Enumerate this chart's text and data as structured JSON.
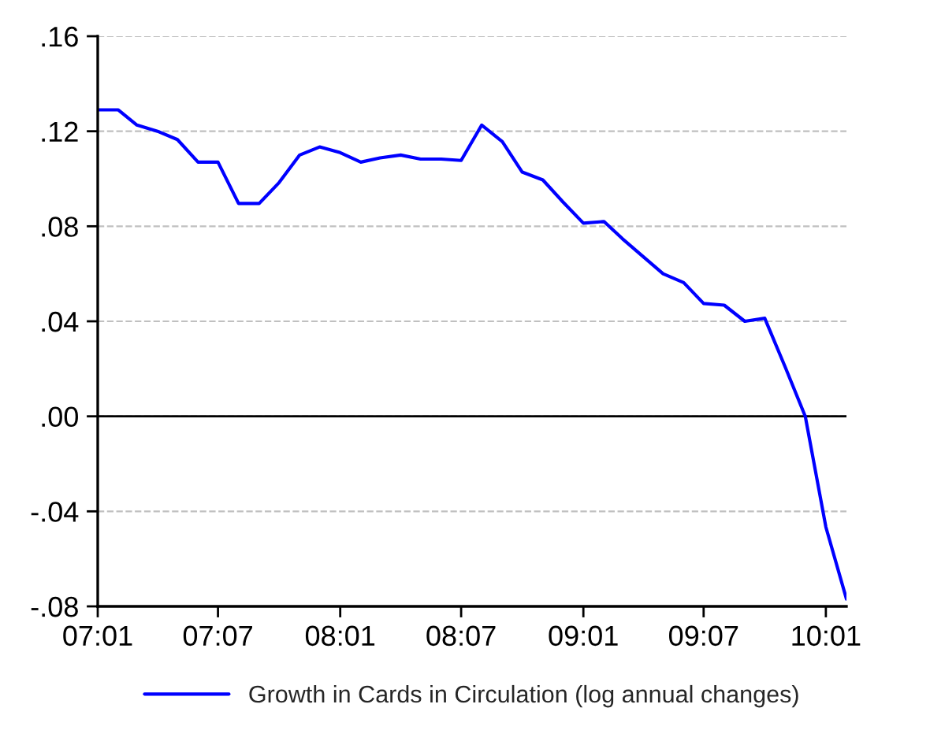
{
  "chart_data": {
    "type": "line",
    "x": [
      "2007-01",
      "2007-02",
      "2007-03",
      "2007-04",
      "2007-05",
      "2007-06",
      "2007-07",
      "2007-08",
      "2007-09",
      "2007-10",
      "2007-11",
      "2007-12",
      "2008-01",
      "2008-02",
      "2008-03",
      "2008-04",
      "2008-05",
      "2008-06",
      "2008-07",
      "2008-08",
      "2008-09",
      "2008-10",
      "2008-11",
      "2008-12",
      "2009-01",
      "2009-02",
      "2009-03",
      "2009-04",
      "2009-05",
      "2009-06",
      "2009-07",
      "2009-08",
      "2009-09",
      "2009-10",
      "2009-11",
      "2009-12",
      "2010-01",
      "2010-02"
    ],
    "series": [
      {
        "name": "Growth in Cards in Circulation (log annual changes)",
        "color": "#0000ff",
        "values": [
          0.129,
          0.129,
          0.1226,
          0.12,
          0.1165,
          0.107,
          0.107,
          0.0896,
          0.0896,
          0.0984,
          0.11,
          0.1134,
          0.111,
          0.107,
          0.1088,
          0.11,
          0.1083,
          0.1083,
          0.1077,
          0.1226,
          0.1156,
          0.1028,
          0.0995,
          0.0903,
          0.0813,
          0.082,
          0.0747,
          0.0672,
          0.06,
          0.0563,
          0.0475,
          0.0468,
          0.04,
          0.0413,
          0.0206,
          0.0,
          -0.0466,
          -0.0769
        ]
      }
    ],
    "xlim": [
      "2007-01",
      "2010-02"
    ],
    "xticks": [
      {
        "value": "2007-01",
        "label": "07:01"
      },
      {
        "value": "2007-07",
        "label": "07:07"
      },
      {
        "value": "2008-01",
        "label": "08:01"
      },
      {
        "value": "2008-07",
        "label": "08:07"
      },
      {
        "value": "2009-01",
        "label": "09:01"
      },
      {
        "value": "2009-07",
        "label": "09:07"
      },
      {
        "value": "2010-01",
        "label": "10:01"
      }
    ],
    "ylim": [
      -0.08,
      0.16
    ],
    "yticks": [
      {
        "value": -0.08,
        "label": "-.08"
      },
      {
        "value": -0.04,
        "label": "-.04"
      },
      {
        "value": 0.0,
        "label": ".00"
      },
      {
        "value": 0.04,
        "label": ".04"
      },
      {
        "value": 0.08,
        "label": ".08"
      },
      {
        "value": 0.12,
        "label": ".12"
      },
      {
        "value": 0.16,
        "label": ".16"
      }
    ],
    "ref_lines": [
      {
        "axis": "y",
        "value": 0,
        "color": "#000000"
      }
    ],
    "grid": "y",
    "legend": "bottom",
    "line_style": "solid",
    "marker": "none"
  }
}
